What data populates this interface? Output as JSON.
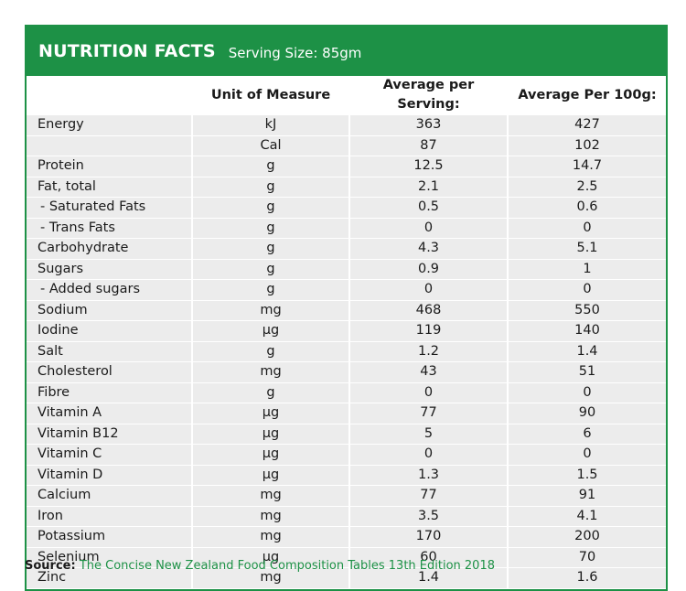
{
  "header": {
    "title": "NUTRITION FACTS",
    "serving": "Serving Size: 85gm"
  },
  "columns": {
    "name": "",
    "unit": "Unit of Measure",
    "per_serving": "Average per Serving:",
    "per_100g": "Average Per 100g:"
  },
  "rows": [
    {
      "name": "Energy",
      "unit": "kJ",
      "serving": "363",
      "per100": "427"
    },
    {
      "name": "",
      "unit": "Cal",
      "serving": "87",
      "per100": "102"
    },
    {
      "name": "Protein",
      "unit": "g",
      "serving": "12.5",
      "per100": "14.7"
    },
    {
      "name": "Fat, total",
      "unit": "g",
      "serving": "2.1",
      "per100": "2.5"
    },
    {
      "name": " - Saturated Fats",
      "unit": "g",
      "serving": "0.5",
      "per100": "0.6"
    },
    {
      "name": " - Trans Fats",
      "unit": "g",
      "serving": "0",
      "per100": "0"
    },
    {
      "name": "Carbohydrate",
      "unit": "g",
      "serving": "4.3",
      "per100": "5.1"
    },
    {
      "name": "Sugars",
      "unit": "g",
      "serving": "0.9",
      "per100": "1"
    },
    {
      "name": " - Added sugars",
      "unit": "g",
      "serving": "0",
      "per100": "0"
    },
    {
      "name": "Sodium",
      "unit": "mg",
      "serving": "468",
      "per100": "550"
    },
    {
      "name": "Iodine",
      "unit": "µg",
      "serving": "119",
      "per100": "140"
    },
    {
      "name": "Salt",
      "unit": "g",
      "serving": "1.2",
      "per100": "1.4"
    },
    {
      "name": "Cholesterol",
      "unit": "mg",
      "serving": "43",
      "per100": "51"
    },
    {
      "name": "Fibre",
      "unit": "g",
      "serving": "0",
      "per100": "0"
    },
    {
      "name": "Vitamin A",
      "unit": "µg",
      "serving": "77",
      "per100": "90"
    },
    {
      "name": "Vitamin B12",
      "unit": "µg",
      "serving": "5",
      "per100": "6"
    },
    {
      "name": "Vitamin C",
      "unit": "µg",
      "serving": "0",
      "per100": "0"
    },
    {
      "name": "Vitamin D",
      "unit": "µg",
      "serving": "1.3",
      "per100": "1.5"
    },
    {
      "name": "Calcium",
      "unit": "mg",
      "serving": "77",
      "per100": "91"
    },
    {
      "name": "Iron",
      "unit": "mg",
      "serving": "3.5",
      "per100": "4.1"
    },
    {
      "name": "Potassium",
      "unit": "mg",
      "serving": "170",
      "per100": "200"
    },
    {
      "name": "Selenium",
      "unit": "µg",
      "serving": "60",
      "per100": "70"
    },
    {
      "name": "Zinc",
      "unit": "mg",
      "serving": "1.4",
      "per100": "1.6"
    }
  ],
  "source": {
    "label": "Source:",
    "text": "The Concise New Zealand Food Composition Tables 13th Edition 2018"
  },
  "colors": {
    "brand_green": "#1d9146",
    "row_fill": "#ececec"
  }
}
